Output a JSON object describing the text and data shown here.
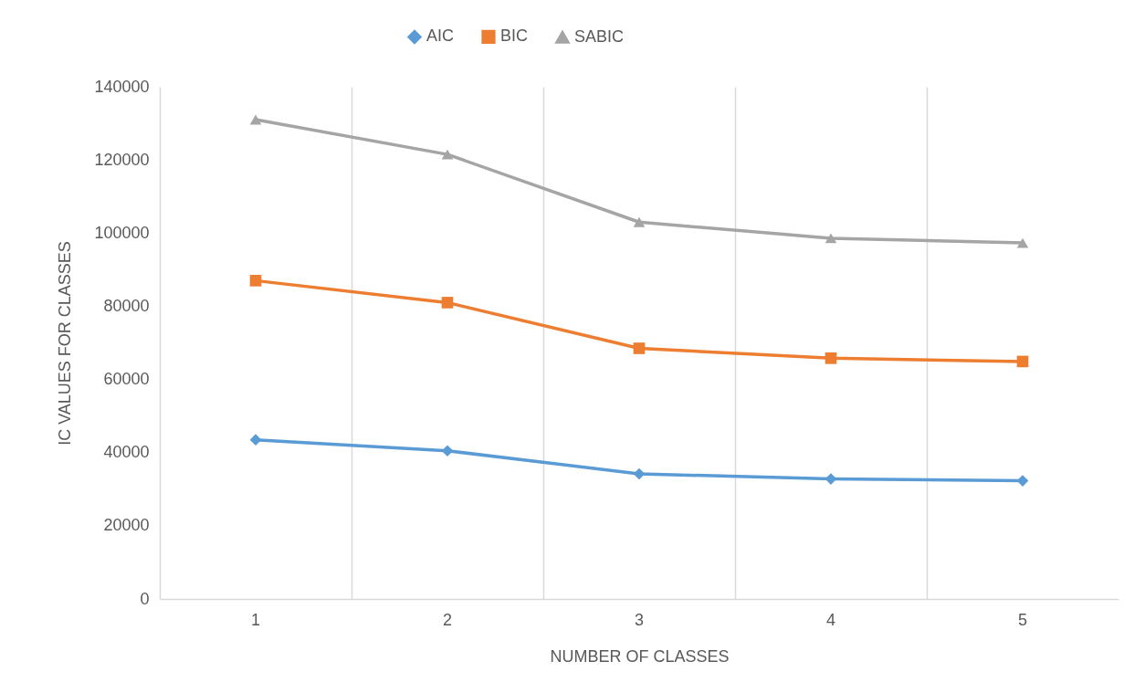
{
  "chart_data": {
    "type": "line",
    "xlabel": "NUMBER OF CLASSES",
    "ylabel": "IC VALUES FOR CLASSES",
    "categories": [
      "1",
      "2",
      "3",
      "4",
      "5"
    ],
    "series": [
      {
        "name": "AIC",
        "color": "#5b9bd5",
        "marker": "diamond",
        "values": [
          43500,
          40500,
          34200,
          32800,
          32300
        ]
      },
      {
        "name": "BIC",
        "color": "#ed7d31",
        "marker": "square",
        "values": [
          87000,
          81000,
          68500,
          65800,
          64900
        ]
      },
      {
        "name": "SABIC",
        "color": "#a5a5a5",
        "marker": "triangle",
        "values": [
          131000,
          121500,
          103000,
          98600,
          97300
        ]
      }
    ],
    "ylim": [
      0,
      140000
    ],
    "yticks": [
      0,
      20000,
      40000,
      60000,
      80000,
      100000,
      120000,
      140000
    ],
    "grid": "x",
    "legend": "top",
    "line_style": "solid"
  }
}
